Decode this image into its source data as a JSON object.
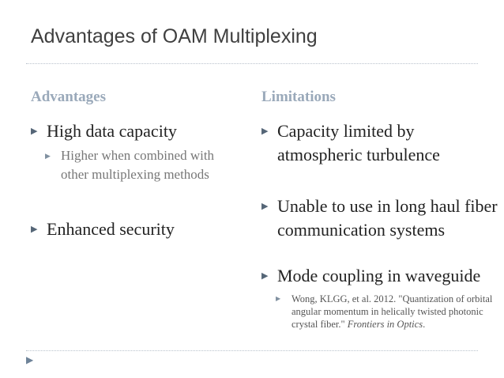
{
  "slide": {
    "title": "Advantages of OAM Multiplexing",
    "left": {
      "heading": "Advantages",
      "items": [
        {
          "text": "High data capacity",
          "sub": "Higher when combined with other multiplexing methods"
        },
        {
          "text": "Enhanced security"
        }
      ]
    },
    "right": {
      "heading": "Limitations",
      "items": [
        {
          "text": "Capacity limited by atmospheric turbulence"
        },
        {
          "text": "Unable to use in long haul fiber communication systems"
        },
        {
          "text": "Mode coupling in waveguide"
        }
      ],
      "reference": {
        "text": "Wong, KLGG, et al. 2012. \"Quantization of orbital angular momentum in helically twisted photonic crystal fiber.\" ",
        "journal": "Frontiers in Optics",
        "tail": "."
      }
    },
    "bullet_glyph": "▶",
    "nav_glyph": "▶"
  }
}
